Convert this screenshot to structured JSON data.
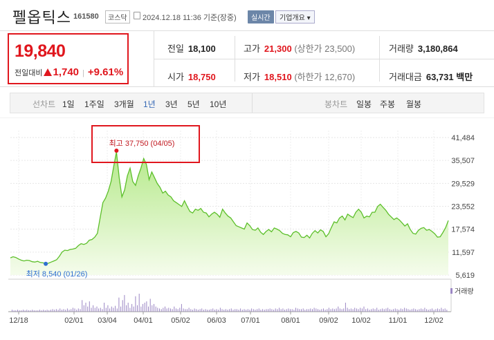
{
  "header": {
    "name": "펠옵틱스",
    "code": "161580",
    "market": "코스닥",
    "datetime": "2024.12.18 11:36 기준(장중)",
    "realtime": "실시간",
    "overview": "기업개요"
  },
  "price": {
    "current": "19,840",
    "change_label": "전일대비",
    "change": "1,740",
    "change_pct": "+9.61%"
  },
  "stats": {
    "prev_label": "전일",
    "prev": "18,100",
    "high_label": "고가",
    "high": "21,300",
    "upper_limit": "(상한가 23,500)",
    "volume_label": "거래량",
    "volume": "3,180,864",
    "open_label": "시가",
    "open": "18,750",
    "low_label": "저가",
    "low": "18,510",
    "lower_limit": "(하한가 12,670)",
    "amount_label": "거래대금",
    "amount": "63,731",
    "amount_unit": "백만"
  },
  "tabs": {
    "line_label": "선차트",
    "periods": [
      "1일",
      "1주일",
      "3개월",
      "1년",
      "3년",
      "5년",
      "10년"
    ],
    "active_period": "1년",
    "candle_label": "봉차트",
    "candles": [
      "일봉",
      "주봉",
      "월봉"
    ]
  },
  "chart_data": {
    "type": "area",
    "title": "",
    "y_ticks": [
      "41,484",
      "35,507",
      "29,529",
      "23,552",
      "17,574",
      "11,597",
      "5,619"
    ],
    "ylim": [
      5619,
      41484
    ],
    "x_ticks": [
      "12/18",
      "02/01",
      "03/04",
      "04/01",
      "05/02",
      "06/03",
      "07/01",
      "08/01",
      "09/02",
      "10/02",
      "11/01",
      "12/02"
    ],
    "series": [
      {
        "values": [
          10100,
          10400,
          10200,
          9800,
          9500,
          9300,
          9500,
          9400,
          9100,
          9000,
          9200,
          8900,
          8800,
          8540,
          8700,
          9000,
          9300,
          9600,
          10500,
          11600,
          12100,
          12000,
          12300,
          12400,
          12600,
          13300,
          13800,
          13600,
          13900,
          14700,
          14900,
          15500,
          16500,
          20500,
          24500,
          25700,
          27500,
          30000,
          34000,
          37750,
          31000,
          26000,
          27800,
          31500,
          33500,
          30000,
          29000,
          31500,
          33500,
          36000,
          34500,
          30500,
          32500,
          31000,
          29500,
          28500,
          27000,
          27500,
          26500,
          26000,
          25000,
          24500,
          24000,
          23500,
          25000,
          23500,
          22200,
          21800,
          22800,
          22500,
          23000,
          22000,
          21800,
          20800,
          21500,
          22000,
          21500,
          20700,
          22800,
          21800,
          21000,
          20500,
          19500,
          18500,
          18200,
          17900,
          17600,
          19200,
          18500,
          17500,
          17300,
          17900,
          16800,
          16200,
          17000,
          17500,
          16900,
          17900,
          17600,
          17200,
          16500,
          16200,
          16100,
          15600,
          16700,
          17000,
          16600,
          15500,
          15400,
          16000,
          15300,
          16500,
          17200,
          16600,
          17400,
          17000,
          15600,
          16400,
          18000,
          19500,
          19200,
          20500,
          21000,
          20000,
          21500,
          21000,
          20600,
          22000,
          22800,
          22000,
          20500,
          21000,
          20800,
          22000,
          22000,
          23500,
          24100,
          23300,
          22500,
          21500,
          20800,
          20100,
          20500,
          20000,
          19200,
          18400,
          19000,
          17500,
          16500,
          16300,
          17300,
          17800,
          18000,
          17300,
          17500,
          17000,
          16400,
          15500,
          15600,
          16700,
          18000,
          19840
        ]
      }
    ],
    "max_label": "최고 37,750 (04/05)",
    "min_label": "최저 8,540 (01/26)",
    "volume_label": "거래량",
    "volume_values": [
      3,
      2,
      2,
      3,
      2,
      2,
      3,
      2,
      3,
      2,
      2,
      3,
      2,
      2,
      2,
      3,
      2,
      3,
      2,
      3,
      2,
      3,
      4,
      3,
      4,
      3,
      5,
      3,
      4,
      3,
      5,
      3,
      4,
      6,
      5,
      3,
      5,
      4,
      18,
      10,
      14,
      8,
      16,
      6,
      10,
      6,
      8,
      5,
      6,
      4,
      14,
      6,
      10,
      5,
      8,
      6,
      9,
      5,
      22,
      8,
      18,
      26,
      10,
      14,
      6,
      12,
      8,
      24,
      10,
      28,
      8,
      12,
      14,
      16,
      8,
      20,
      10,
      12,
      8,
      6,
      5,
      4,
      6,
      8,
      5,
      6,
      5,
      4,
      8,
      5,
      4,
      6,
      12,
      5,
      4,
      4,
      6,
      4,
      3,
      5,
      4,
      3,
      4,
      5,
      3,
      4,
      3,
      3,
      4,
      5,
      3,
      4,
      3,
      6,
      4,
      3,
      4,
      3,
      4,
      5,
      3,
      4,
      4,
      3,
      5,
      3,
      4,
      3,
      4,
      3,
      5,
      4,
      3,
      4,
      5,
      3,
      4,
      3,
      4,
      4,
      5,
      4,
      3,
      5,
      4,
      6,
      4,
      5,
      3,
      4,
      5,
      4,
      4,
      3,
      6,
      5,
      4,
      4,
      5,
      3,
      4,
      4,
      5,
      4,
      6,
      5,
      4,
      3,
      4,
      5,
      3,
      4,
      6,
      4,
      5,
      4,
      5,
      8,
      5,
      4,
      5,
      14,
      6,
      4,
      5,
      4,
      6,
      5,
      4,
      6,
      5,
      8,
      4,
      5,
      3,
      4,
      5,
      4,
      6,
      3,
      4,
      5,
      4,
      5,
      6,
      4,
      3,
      4,
      5,
      4,
      3,
      5,
      4,
      6,
      5,
      4,
      3,
      4,
      5,
      4,
      3,
      4,
      5,
      4,
      6,
      4,
      3,
      4,
      5,
      3,
      4,
      5,
      4,
      6,
      4,
      5,
      3
    ]
  }
}
